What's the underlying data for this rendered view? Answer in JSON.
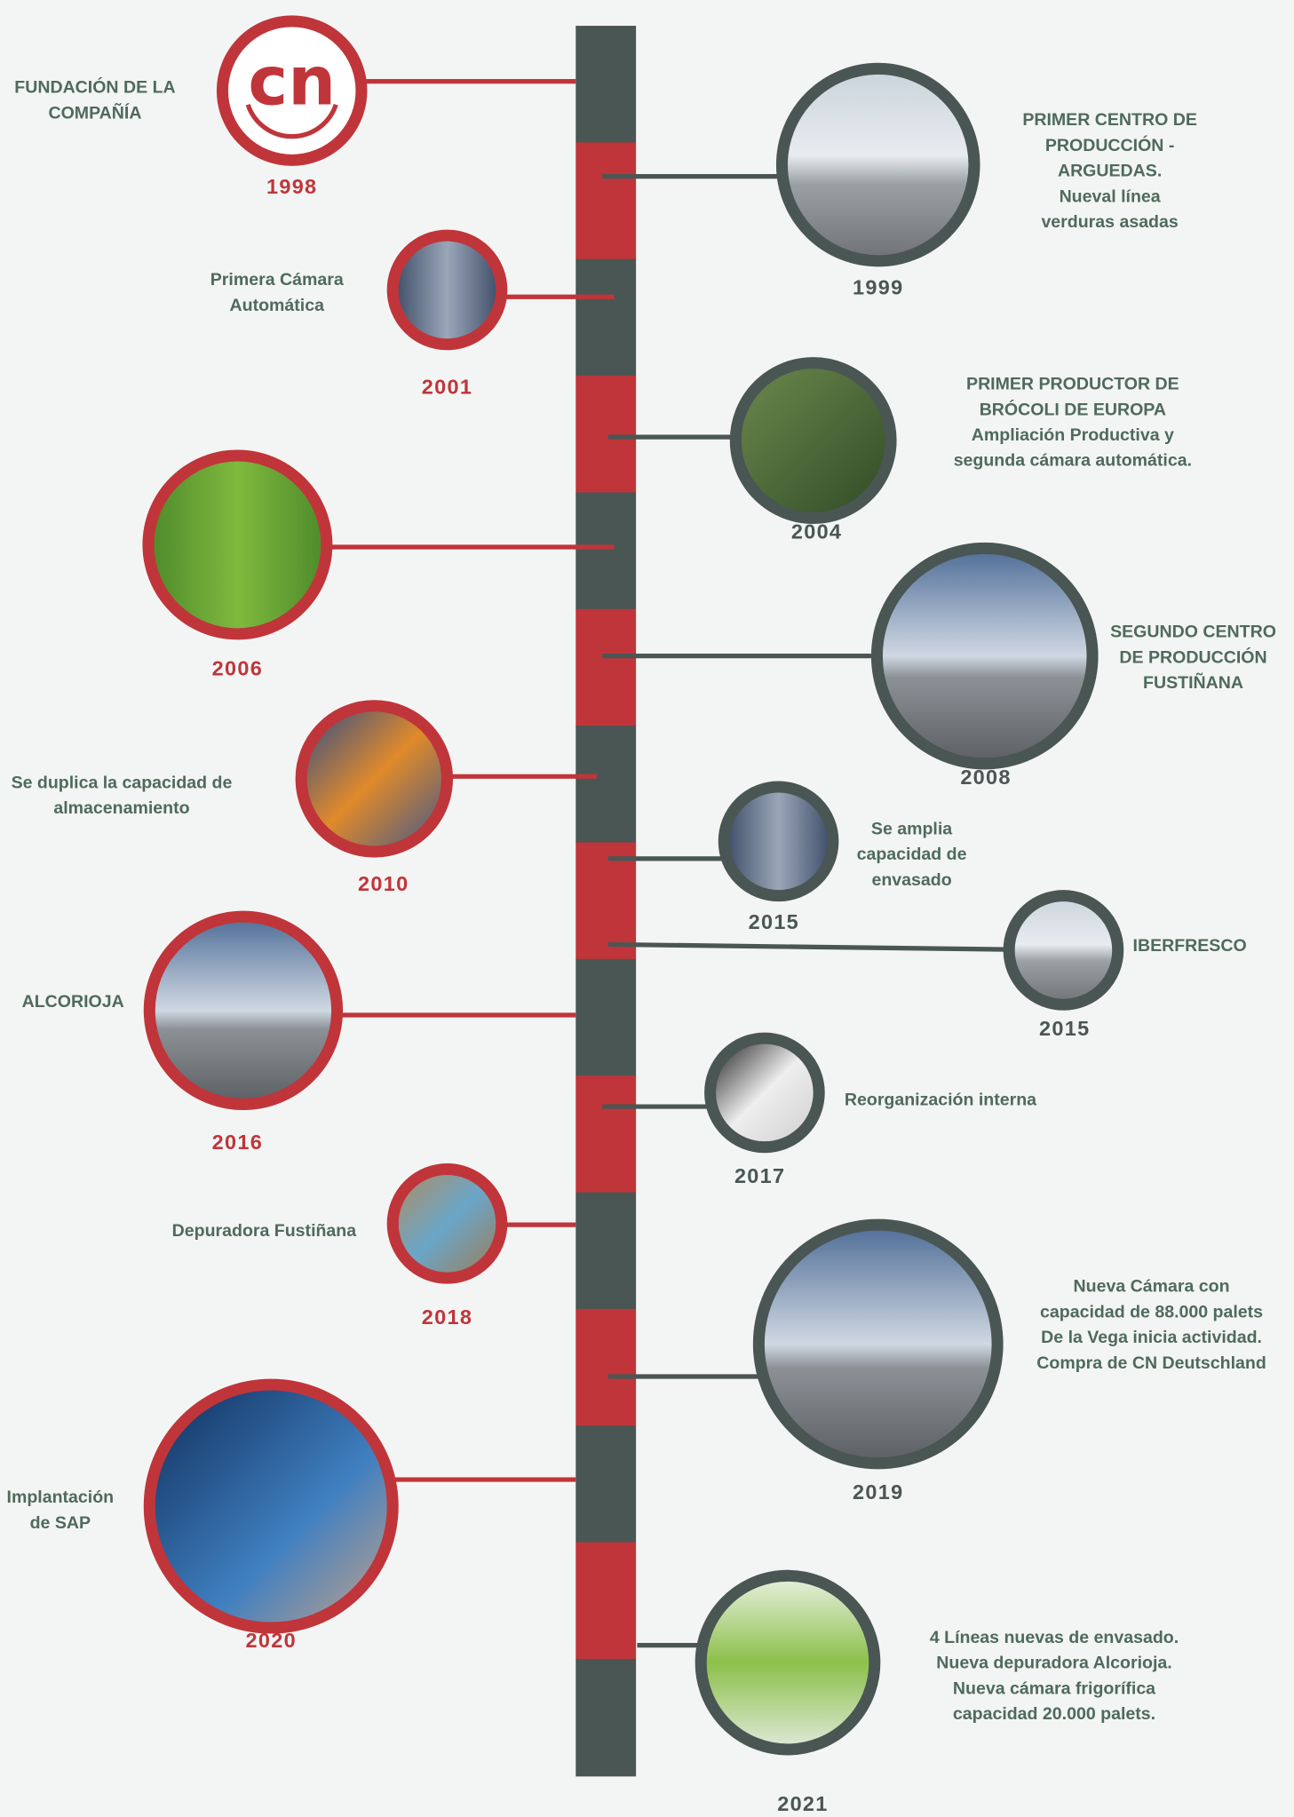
{
  "timeline": {
    "logo": "cn",
    "events": [
      {
        "year": "1998",
        "text": [
          "FUNDACIÓN DE LA",
          "COMPAÑÍA"
        ]
      },
      {
        "year": "1999",
        "text": [
          "PRIMER CENTRO DE",
          "PRODUCCIÓN -",
          "ARGUEDAS.",
          "Nueval línea",
          "verduras asadas"
        ]
      },
      {
        "year": "2001",
        "text": [
          "Primera Cámara",
          "Automática"
        ]
      },
      {
        "year": "2004",
        "text": [
          "PRIMER PRODUCTOR DE",
          "BRÓCOLI DE EUROPA",
          "Ampliación Productiva y",
          "segunda cámara automática."
        ]
      },
      {
        "year": "2006"
      },
      {
        "year": "2008",
        "text": [
          "SEGUNDO CENTRO",
          "DE PRODUCCIÓN",
          "FUSTIÑANA"
        ]
      },
      {
        "year": "2010",
        "text": [
          "Se duplica la capacidad de",
          "almacenamiento"
        ]
      },
      {
        "year": "2015",
        "text": [
          "Se amplia",
          "capacidad de",
          "envasado"
        ]
      },
      {
        "year": "2015",
        "text": [
          "IBERFRESCO"
        ]
      },
      {
        "year": "2016",
        "text": [
          "ALCORIOJA"
        ]
      },
      {
        "year": "2017",
        "text": [
          "Reorganización interna"
        ]
      },
      {
        "year": "2018",
        "text": [
          "Depuradora Fustiñana"
        ]
      },
      {
        "year": "2019",
        "text": [
          "Nueva Cámara con",
          "capacidad de 88.000 palets",
          "De la Vega inicia actividad.",
          "Compra de CN Deutschland"
        ]
      },
      {
        "year": "2020",
        "text": [
          "Implantación",
          "de SAP"
        ]
      },
      {
        "year": "2021",
        "text": [
          "4 Líneas nuevas de envasado.",
          "Nueva depuradora Alcorioja.",
          "Nueva cámara frigorífica",
          "capacidad 20.000 palets."
        ]
      }
    ]
  }
}
